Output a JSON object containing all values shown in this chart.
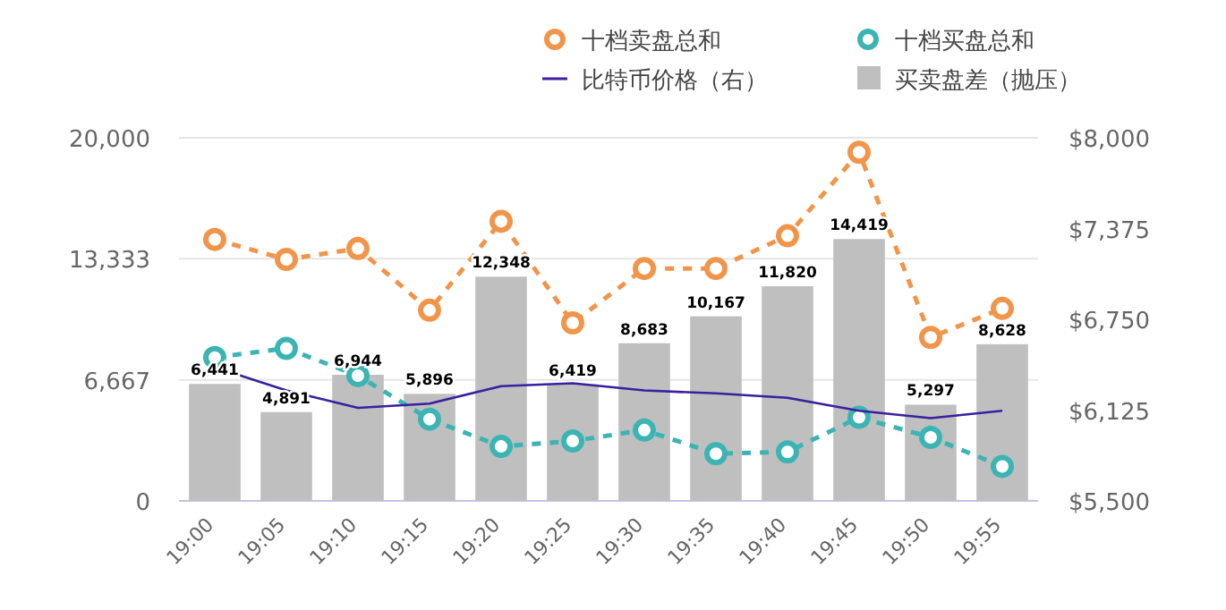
{
  "chart_data": {
    "type": "bar",
    "categories": [
      "19:00",
      "19:05",
      "19:10",
      "19:15",
      "19:20",
      "19:25",
      "19:30",
      "19:35",
      "19:40",
      "19:45",
      "19:50",
      "19:55"
    ],
    "series": [
      {
        "name": "十档卖盘总和",
        "type": "line",
        "color": "#f0954a",
        "marker": "circle",
        "line_style": "dashed",
        "values": [
          14400,
          13300,
          13900,
          10500,
          15400,
          9800,
          12800,
          12800,
          14600,
          19200,
          9000,
          10600
        ]
      },
      {
        "name": "十档买盘总和",
        "type": "line",
        "color": "#3cb4b4",
        "marker": "circle",
        "line_style": "dashed",
        "values": [
          7900,
          8400,
          6900,
          4500,
          3000,
          3300,
          3900,
          2600,
          2700,
          4600,
          3500,
          1900
        ]
      },
      {
        "name": "比特币价格（右）",
        "type": "line",
        "color": "#3a1fa0",
        "axis": "y2",
        "marker": "none",
        "line_style": "solid",
        "values": [
          6420,
          6260,
          6140,
          6170,
          6290,
          6310,
          6260,
          6240,
          6210,
          6120,
          6070,
          6120
        ]
      },
      {
        "name": "买卖盘差（抛压）",
        "color": "#bfbfbf",
        "values": [
          6441,
          4891,
          6944,
          5896,
          12348,
          6419,
          8683,
          10167,
          11820,
          14419,
          5297,
          8628
        ],
        "value_labels": [
          "6,441",
          "4,891",
          "6,944",
          "5,896",
          "12,348",
          "6,419",
          "8,683",
          "10,167",
          "11,820",
          "14,419",
          "5,297",
          "8,628"
        ]
      }
    ],
    "ylim": [
      0,
      20000
    ],
    "yticks": [
      0,
      {
        "value": 6667,
        "label": "6,667"
      },
      {
        "value": 13333,
        "label": "13,333"
      },
      {
        "value": 20000,
        "label": "20,000"
      }
    ],
    "y2lim": [
      5500,
      8000
    ],
    "y2ticks": [
      {
        "value": 5500,
        "label": "$5,500"
      },
      {
        "value": 6125,
        "label": "$6,125"
      },
      {
        "value": 6750,
        "label": "$6,750"
      },
      {
        "value": 7375,
        "label": "$7,375"
      },
      {
        "value": 8000,
        "label": "$8,000"
      }
    ],
    "grid": "y",
    "legend": "top right"
  }
}
